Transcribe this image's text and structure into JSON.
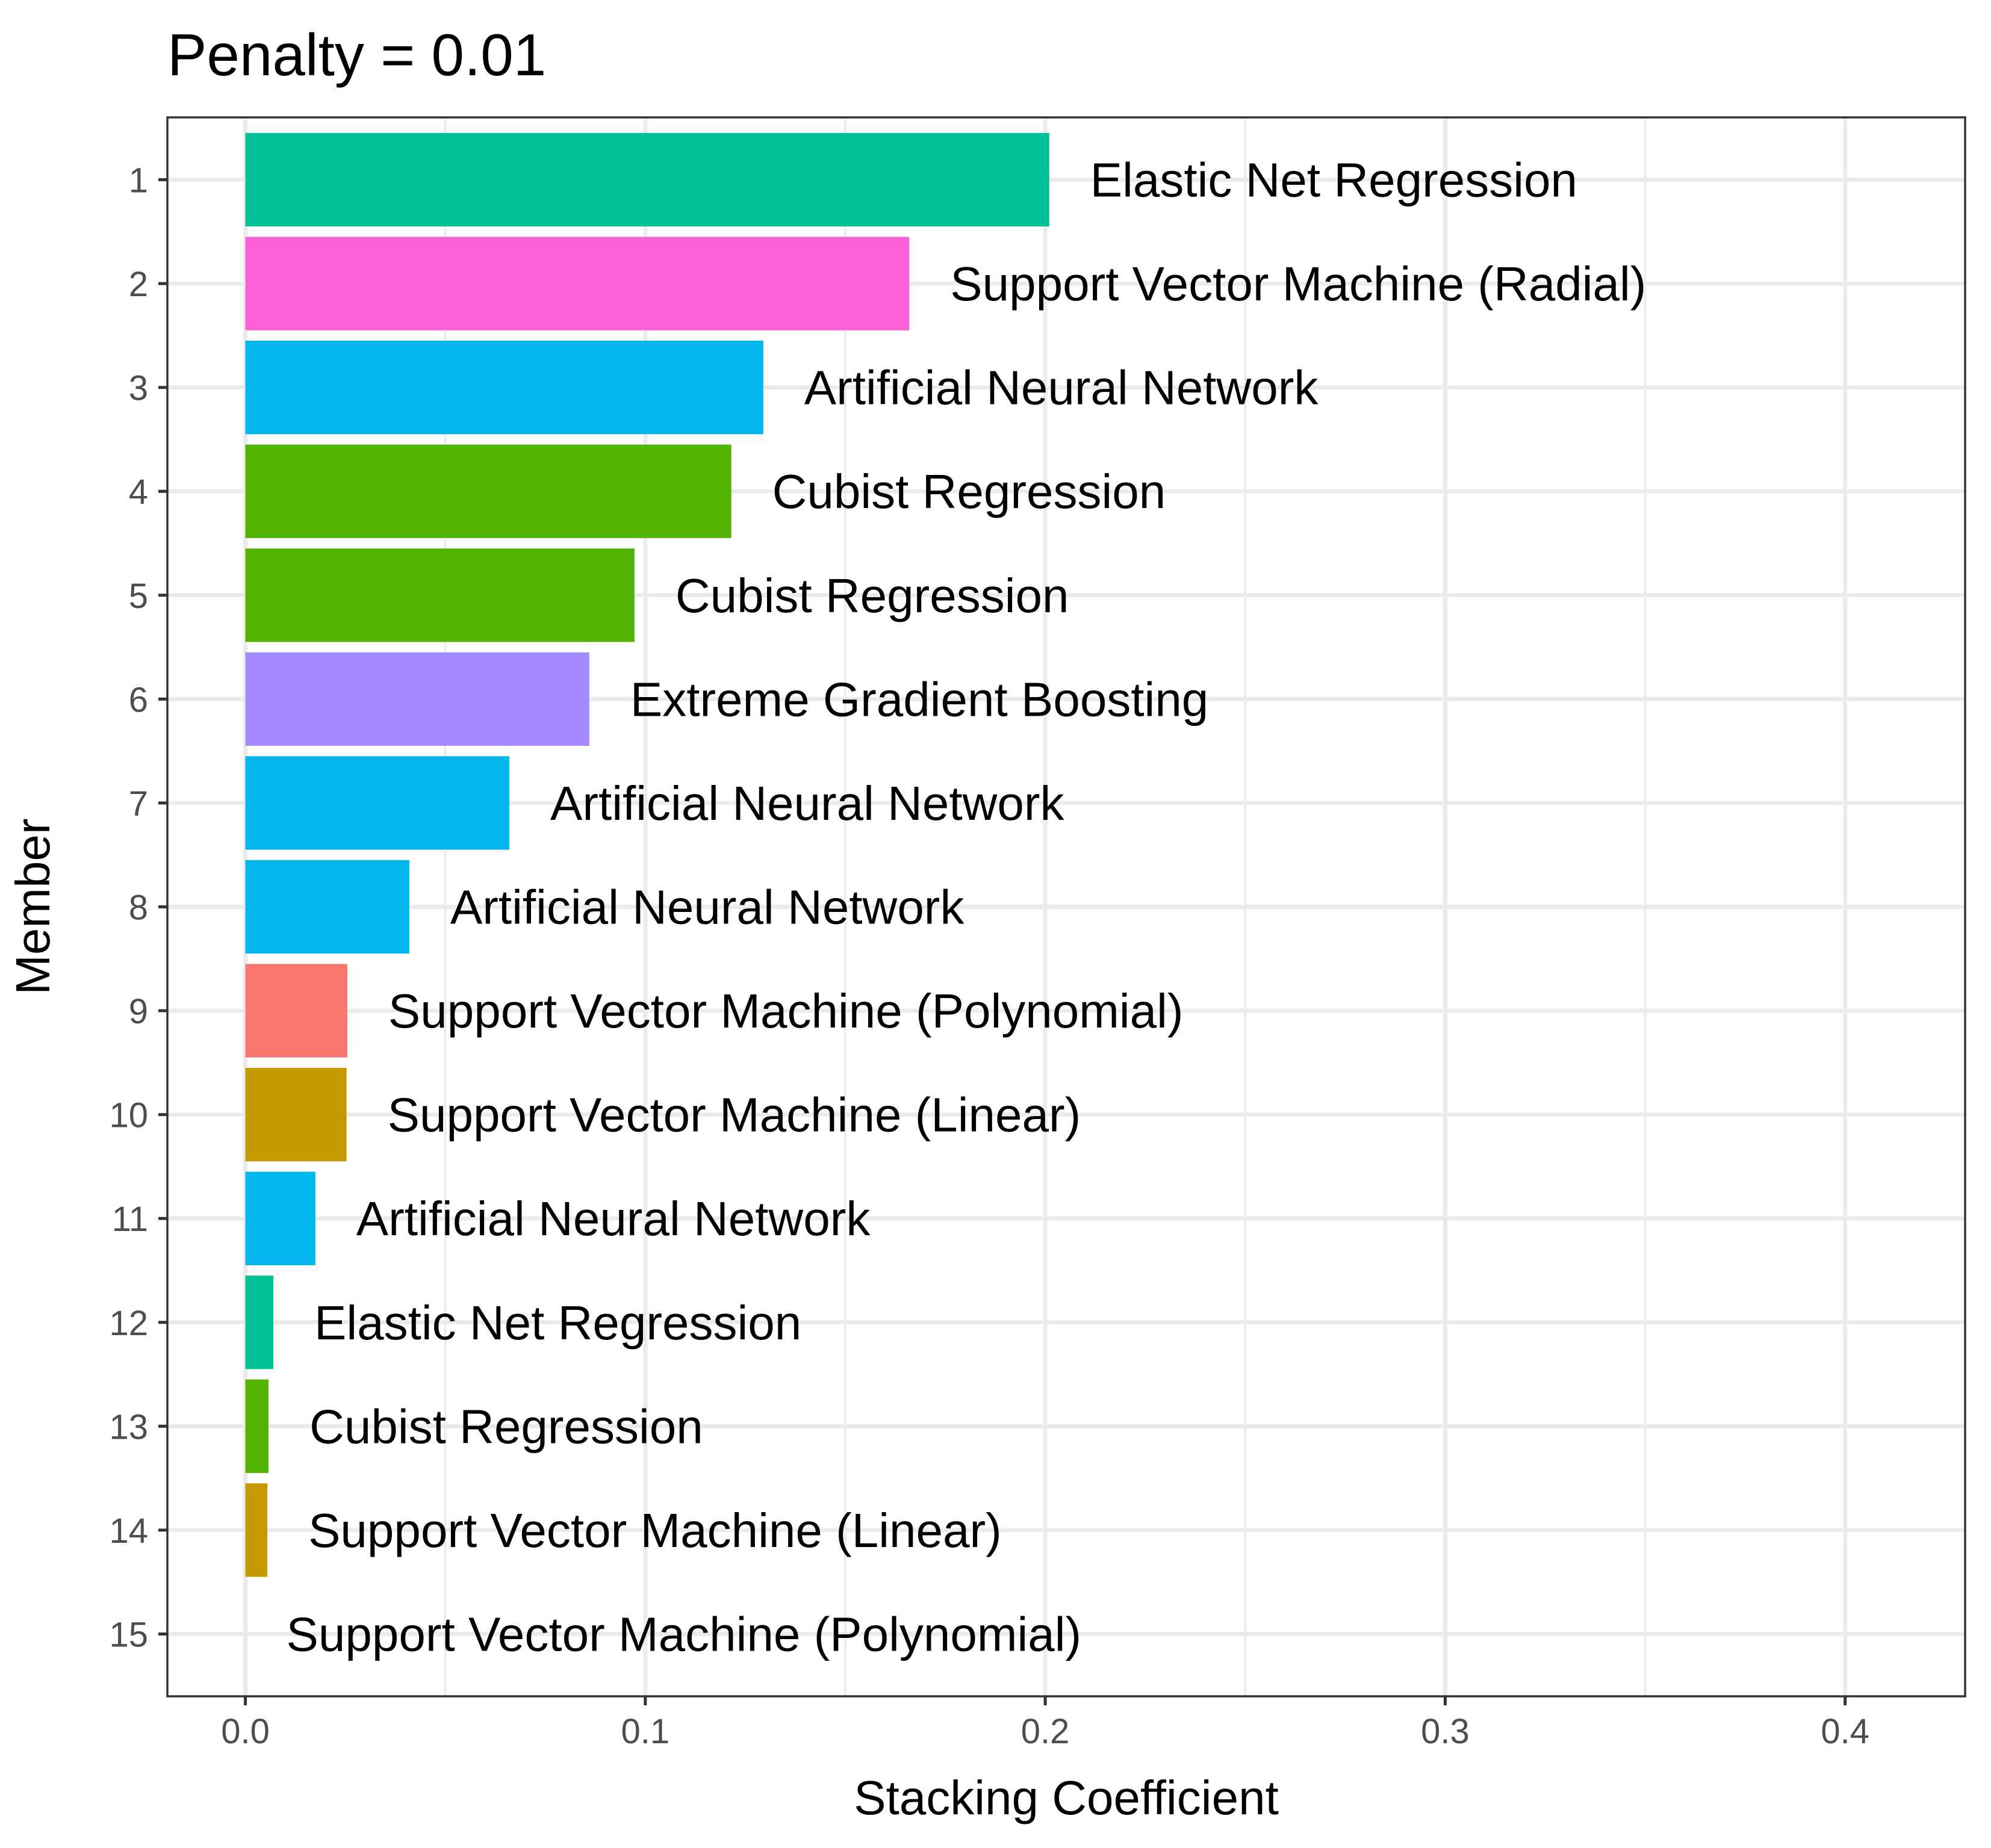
{
  "chart_data": {
    "type": "bar",
    "orientation": "horizontal",
    "title": "Penalty = 0.01",
    "xlabel": "Stacking Coefficient",
    "ylabel": "Member",
    "xlim": [
      -0.0195,
      0.43
    ],
    "x_ticks": [
      0.0,
      0.1,
      0.2,
      0.3,
      0.4
    ],
    "x_tick_labels": [
      "0.0",
      "0.1",
      "0.2",
      "0.3",
      "0.4"
    ],
    "grid": true,
    "legend": "none",
    "bars": [
      {
        "member": "1",
        "value": 0.201,
        "label": "Elastic Net Regression",
        "color": "#00C094"
      },
      {
        "member": "2",
        "value": 0.166,
        "label": "Support Vector Machine (Radial)",
        "color": "#FB61D7"
      },
      {
        "member": "3",
        "value": 0.1295,
        "label": "Artificial Neural Network",
        "color": "#00B6EB"
      },
      {
        "member": "4",
        "value": 0.1215,
        "label": "Cubist Regression",
        "color": "#53B400"
      },
      {
        "member": "5",
        "value": 0.0973,
        "label": "Cubist Regression",
        "color": "#53B400"
      },
      {
        "member": "6",
        "value": 0.086,
        "label": "Extreme Gradient Boosting",
        "color": "#A58AFF"
      },
      {
        "member": "7",
        "value": 0.066,
        "label": "Artificial Neural Network",
        "color": "#00B6EB"
      },
      {
        "member": "8",
        "value": 0.041,
        "label": "Artificial Neural Network",
        "color": "#00B6EB"
      },
      {
        "member": "9",
        "value": 0.0255,
        "label": "Support Vector Machine (Polynomial)",
        "color": "#F8766D"
      },
      {
        "member": "10",
        "value": 0.0253,
        "label": "Support Vector Machine (Linear)",
        "color": "#C49A00"
      },
      {
        "member": "11",
        "value": 0.0175,
        "label": "Artificial Neural Network",
        "color": "#00B6EB"
      },
      {
        "member": "12",
        "value": 0.007,
        "label": "Elastic Net Regression",
        "color": "#00C094"
      },
      {
        "member": "13",
        "value": 0.0058,
        "label": "Cubist Regression",
        "color": "#53B400"
      },
      {
        "member": "14",
        "value": 0.0055,
        "label": "Support Vector Machine (Linear)",
        "color": "#C49A00"
      },
      {
        "member": "15",
        "value": 0.0,
        "label": "Support Vector Machine (Polynomial)",
        "color": "#F8766D"
      }
    ]
  }
}
